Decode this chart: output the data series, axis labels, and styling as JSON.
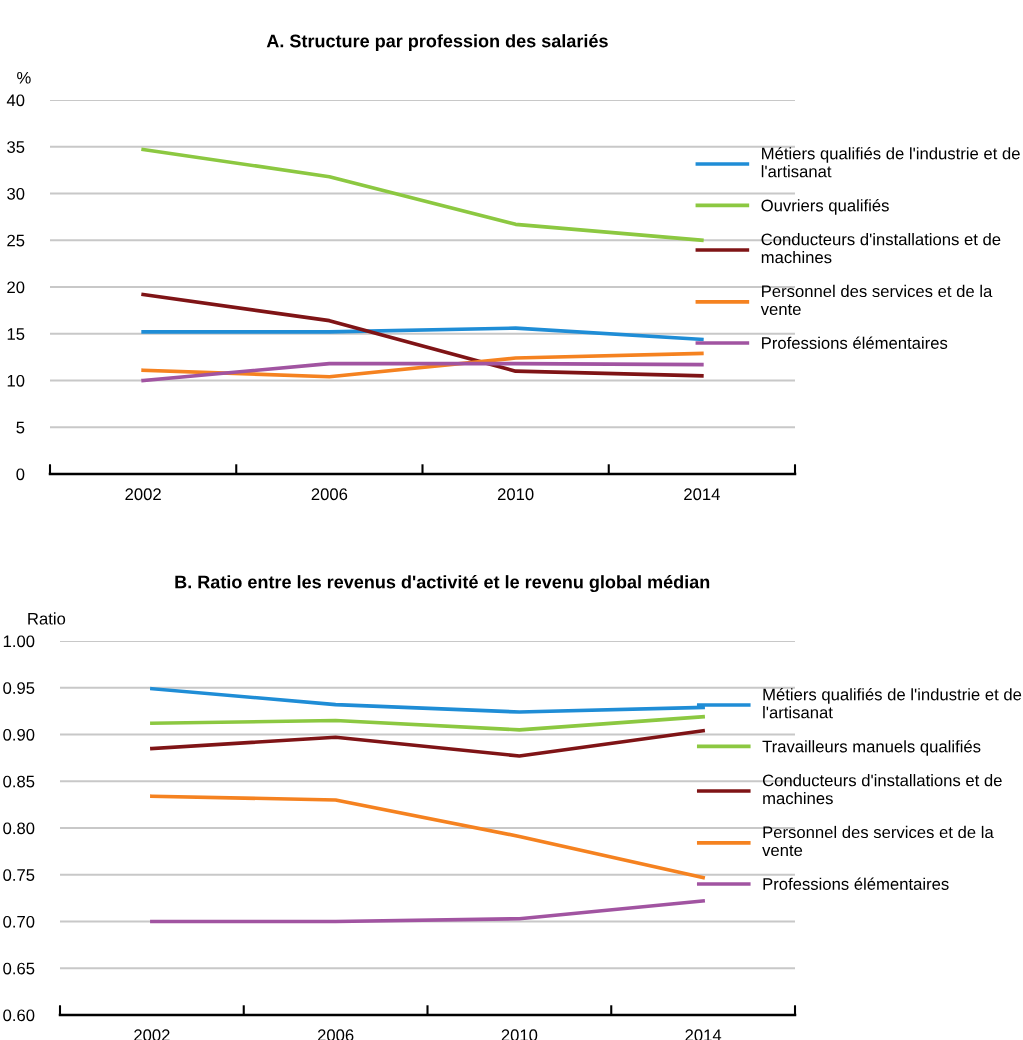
{
  "chart_data": [
    {
      "type": "line",
      "title": "A. Structure par profession des salariés",
      "ylabel": "%",
      "categories": [
        "2002",
        "2006",
        "2010",
        "2014"
      ],
      "ylim": [
        0,
        40
      ],
      "yticks": [
        0,
        5,
        10,
        15,
        20,
        25,
        30,
        35,
        40
      ],
      "grid": "y",
      "legend": "right",
      "line_style": "solid",
      "series": [
        {
          "name": "Métiers qualifiés de l'industrie et de\nl'artisanat",
          "color": "#1f8dd6",
          "values": [
            15.2,
            15.2,
            15.6,
            14.4
          ]
        },
        {
          "name": "Ouvriers qualifiés",
          "color": "#8cc841",
          "values": [
            34.7,
            31.8,
            26.7,
            25.0
          ]
        },
        {
          "name": "Conducteurs d'installations et de\nmachines",
          "color": "#7f1416",
          "values": [
            19.2,
            16.4,
            11.0,
            10.5
          ]
        },
        {
          "name": "Personnel des services et de la\nvente",
          "color": "#f58220",
          "values": [
            11.1,
            10.4,
            12.4,
            12.9
          ]
        },
        {
          "name": "Professions élémentaires",
          "color": "#a154a1",
          "values": [
            10.0,
            11.8,
            11.8,
            11.7
          ]
        }
      ]
    },
    {
      "type": "line",
      "title": "B. Ratio entre les revenus d'activité et le revenu global médian",
      "ylabel": "Ratio",
      "categories": [
        "2002",
        "2006",
        "2010",
        "2014"
      ],
      "ylim": [
        0.6,
        1.0
      ],
      "yticks": [
        {
          "value": 0.6,
          "label": "0.60"
        },
        {
          "value": 0.65,
          "label": "0.65"
        },
        {
          "value": 0.7,
          "label": "0.70"
        },
        {
          "value": 0.75,
          "label": "0.75"
        },
        {
          "value": 0.8,
          "label": "0.80"
        },
        {
          "value": 0.85,
          "label": "0.85"
        },
        {
          "value": 0.9,
          "label": "0.90"
        },
        {
          "value": 0.95,
          "label": "0.95"
        },
        {
          "value": 1.0,
          "label": "1.00"
        }
      ],
      "grid": "y",
      "legend": "right",
      "line_style": "solid",
      "series": [
        {
          "name": "Métiers qualifiés de l'industrie et de\nl'artisanat",
          "color": "#1f8dd6",
          "values": [
            0.949,
            0.932,
            0.924,
            0.929
          ]
        },
        {
          "name": "Travailleurs manuels qualifiés",
          "color": "#8cc841",
          "values": [
            0.912,
            0.915,
            0.905,
            0.919
          ]
        },
        {
          "name": "Conducteurs d'installations et de\nmachines",
          "color": "#7f1416",
          "values": [
            0.885,
            0.897,
            0.877,
            0.904
          ]
        },
        {
          "name": "Personnel des services et de la\nvente",
          "color": "#f58220",
          "values": [
            0.834,
            0.83,
            0.791,
            0.747
          ]
        },
        {
          "name": "Professions élémentaires",
          "color": "#a154a1",
          "values": [
            0.7,
            0.7,
            0.703,
            0.722
          ]
        }
      ]
    }
  ]
}
